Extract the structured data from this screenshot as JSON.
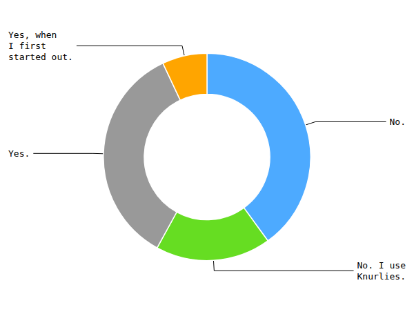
{
  "chart_data": {
    "type": "donut",
    "categories": [
      "No.",
      "No. I use\nKnurlies.",
      "Yes.",
      "Yes, when\nI first\nstarted out."
    ],
    "values": [
      40,
      18,
      35,
      7
    ],
    "colors": [
      "#4DAAFF",
      "#66DD22",
      "#999999",
      "#FFA500"
    ]
  }
}
